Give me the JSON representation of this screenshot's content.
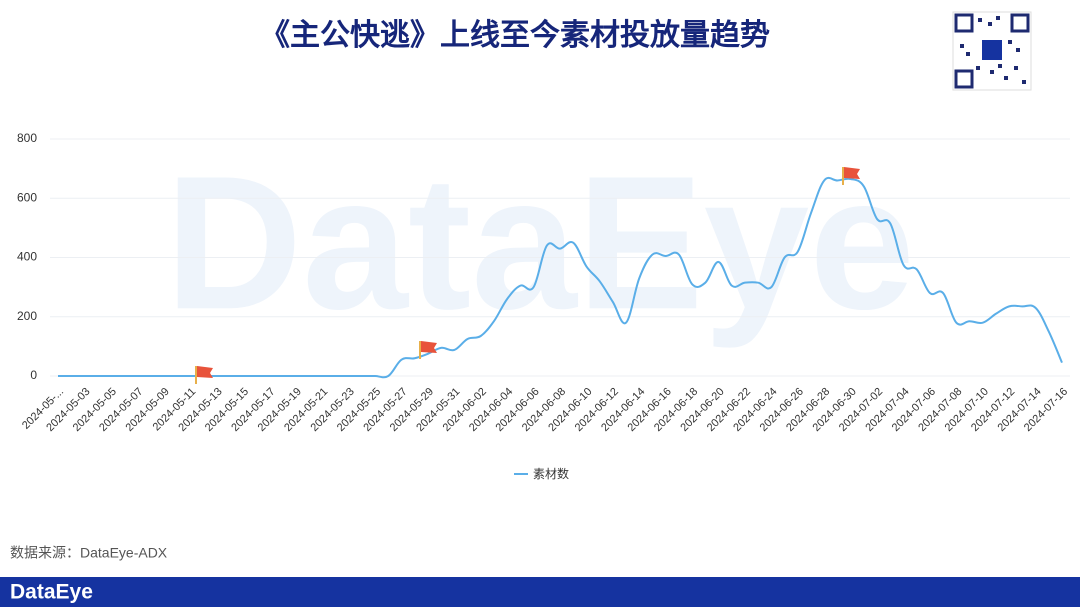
{
  "title": "《主公快逃》上线至今素材投放量趋势",
  "watermark": "DataEye",
  "source": "数据来源：DataEye-ADX",
  "footer_logo": "DataEye",
  "chart_data": {
    "type": "line",
    "categories": [
      "2024-05-...",
      null,
      "2024-05-03",
      null,
      "2024-05-05",
      null,
      "2024-05-07",
      null,
      "2024-05-09",
      null,
      "2024-05-11",
      null,
      "2024-05-13",
      null,
      "2024-05-15",
      null,
      "2024-05-17",
      null,
      "2024-05-19",
      null,
      "2024-05-21",
      null,
      "2024-05-23",
      null,
      "2024-05-25",
      null,
      "2024-05-27",
      null,
      "2024-05-29",
      null,
      "2024-05-31",
      null,
      "2024-06-02",
      null,
      "2024-06-04",
      null,
      "2024-06-06",
      null,
      "2024-06-08",
      null,
      "2024-06-10",
      null,
      "2024-06-12",
      null,
      "2024-06-14",
      null,
      "2024-06-16",
      null,
      "2024-06-18",
      null,
      "2024-06-20",
      null,
      "2024-06-22",
      null,
      "2024-06-24",
      null,
      "2024-06-26",
      null,
      "2024-06-28",
      null,
      "2024-06-30",
      null,
      "2024-07-02",
      null,
      "2024-07-04",
      null,
      "2024-07-06",
      null,
      "2024-07-08",
      null,
      "2024-07-10",
      null,
      "2024-07-12",
      null,
      "2024-07-14",
      null,
      "2024-07-16"
    ],
    "series": [
      {
        "name": "素材数",
        "color": "#5aaee8",
        "values": [
          0,
          0,
          0,
          0,
          0,
          0,
          0,
          0,
          0,
          0,
          0,
          0,
          0,
          0,
          0,
          0,
          0,
          0,
          0,
          0,
          0,
          0,
          0,
          0,
          0,
          0,
          55,
          60,
          75,
          95,
          88,
          125,
          135,
          185,
          260,
          305,
          300,
          440,
          430,
          450,
          370,
          320,
          250,
          180,
          330,
          410,
          405,
          410,
          310,
          315,
          385,
          305,
          315,
          315,
          300,
          400,
          420,
          550,
          660,
          660,
          665,
          640,
          530,
          515,
          375,
          360,
          280,
          280,
          180,
          185,
          180,
          210,
          235,
          235,
          230,
          150,
          45
        ]
      }
    ],
    "ylim": [
      0,
      800
    ],
    "yticks": [
      0,
      200,
      400,
      600,
      800
    ],
    "grid": true
  }
}
